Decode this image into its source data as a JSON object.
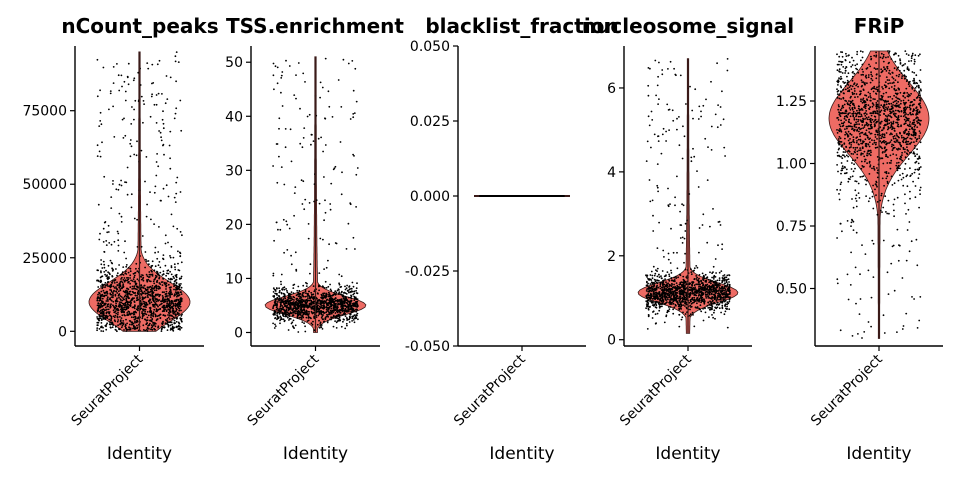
{
  "figure": {
    "colors": {
      "violin_fill": "#ee6b64",
      "violin_stroke": "#3a1a18",
      "point": "#000000",
      "axis": "#000000"
    }
  },
  "chart_data": [
    {
      "type": "violin",
      "title": "nCount_peaks",
      "xlabel": "Identity",
      "categories": [
        "SeuratProject"
      ],
      "ylim": [
        -5000,
        97000
      ],
      "yticks": [
        0,
        25000,
        50000,
        75000
      ],
      "ytick_labels": [
        "0",
        "25000",
        "50000",
        "75000"
      ],
      "summary": {
        "min": 0,
        "bulk_low": 2000,
        "bulk_high": 22000,
        "mode": 10000,
        "max": 95000
      },
      "n_points": 1600
    },
    {
      "type": "violin",
      "title": "TSS.enrichment",
      "xlabel": "Identity",
      "categories": [
        "SeuratProject"
      ],
      "ylim": [
        -2.5,
        53
      ],
      "yticks": [
        0,
        10,
        20,
        30,
        40,
        50
      ],
      "ytick_labels": [
        "0",
        "10",
        "20",
        "30",
        "40",
        "50"
      ],
      "summary": {
        "min": 0,
        "bulk_low": 3,
        "bulk_high": 8,
        "mode": 5,
        "max": 51
      },
      "n_points": 1400
    },
    {
      "type": "violin",
      "title": "blacklist_fraction",
      "xlabel": "Identity",
      "categories": [
        "SeuratProject"
      ],
      "ylim": [
        -0.05,
        0.05
      ],
      "yticks": [
        -0.05,
        -0.025,
        0.0,
        0.025,
        0.05
      ],
      "ytick_labels": [
        "-0.050",
        "-0.025",
        "0.000",
        "0.025",
        "0.050"
      ],
      "summary": {
        "min": 0,
        "bulk_low": 0,
        "bulk_high": 0,
        "mode": 0,
        "max": 0
      },
      "n_points": 800
    },
    {
      "type": "violin",
      "title": "nucleosome_signal",
      "xlabel": "Identity",
      "categories": [
        "SeuratProject"
      ],
      "ylim": [
        -0.15,
        7.0
      ],
      "yticks": [
        0,
        2,
        4,
        6
      ],
      "ytick_labels": [
        "0",
        "2",
        "4",
        "6"
      ],
      "summary": {
        "min": 0.15,
        "bulk_low": 0.8,
        "bulk_high": 1.5,
        "mode": 1.12,
        "max": 6.7
      },
      "n_points": 1400
    },
    {
      "type": "violin",
      "title": "FRiP",
      "xlabel": "Identity",
      "categories": [
        "SeuratProject"
      ],
      "ylim": [
        0.27,
        1.47
      ],
      "yticks": [
        0.5,
        0.75,
        1.0,
        1.25
      ],
      "ytick_labels": [
        "0.50",
        "0.75",
        "1.00",
        "1.25"
      ],
      "summary": {
        "min": 0.3,
        "bulk_low": 0.95,
        "bulk_high": 1.38,
        "mode": 1.18,
        "max": 1.45
      },
      "n_points": 1500
    }
  ]
}
